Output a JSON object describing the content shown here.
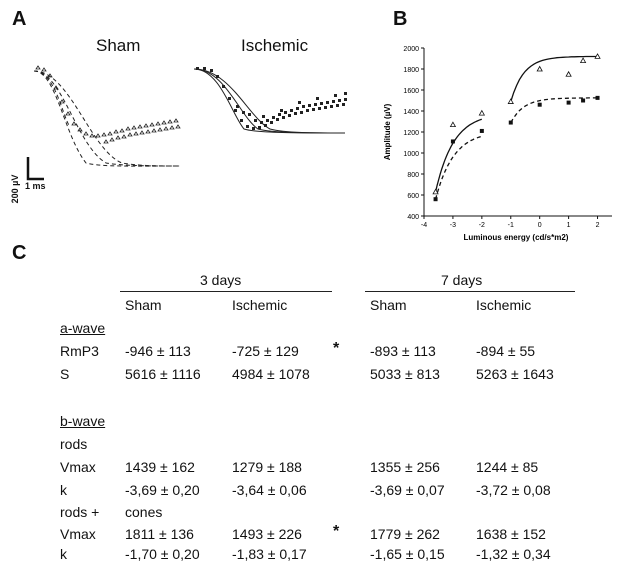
{
  "panel_labels": {
    "a": "A",
    "b": "B",
    "c": "C"
  },
  "panel_a": {
    "title_left": "Sham",
    "title_right": "Ischemic",
    "scale_y": "200 µV",
    "scale_x": "1 ms"
  },
  "chart_data": {
    "type": "scatter",
    "title": "",
    "xlabel": "Luminous energy (cd/s*m2)",
    "ylabel": "Amplitude (µV)",
    "xlim": [
      -4,
      2.5
    ],
    "ylim": [
      400,
      2000
    ],
    "xticks": [
      -4,
      -3,
      -2,
      -1,
      0,
      1,
      2
    ],
    "yticks": [
      400,
      600,
      800,
      1000,
      1200,
      1400,
      1600,
      1800,
      2000
    ],
    "grid": false,
    "series": [
      {
        "marker": "open-triangle",
        "line": "solid",
        "points": [
          [
            -3.6,
            630
          ],
          [
            -3.0,
            1270
          ],
          [
            -2.0,
            1380
          ],
          [
            -1.0,
            1490
          ],
          [
            0.0,
            1800
          ],
          [
            1.0,
            1750
          ],
          [
            1.5,
            1880
          ],
          [
            2.0,
            1920
          ]
        ]
      },
      {
        "marker": "filled-square",
        "line": "dashed",
        "points": [
          [
            -3.6,
            560
          ],
          [
            -3.0,
            1110
          ],
          [
            -2.0,
            1210
          ],
          [
            -1.0,
            1290
          ],
          [
            0.0,
            1460
          ],
          [
            1.0,
            1480
          ],
          [
            1.5,
            1500
          ],
          [
            2.0,
            1525
          ]
        ]
      }
    ]
  },
  "table": {
    "group_3": "3 days",
    "group_7": "7 days",
    "col_sham_3": "Sham",
    "col_isch_3": "Ischemic",
    "col_sham_7": "Sham",
    "col_isch_7": "Ischemic",
    "section_a": "a-wave",
    "section_b": "b-wave",
    "sub_rods": "rods",
    "sub_rodscones_1": "rods   +",
    "sub_rodscones_2": "cones",
    "rows": [
      {
        "label": "RmP3",
        "v": [
          "-946 ± 113",
          "-725 ± 129",
          "-893 ± 113",
          "-894 ± 55"
        ]
      },
      {
        "label": "S",
        "v": [
          "5616 ± 1116",
          "4984 ± 1078",
          "5033 ± 813",
          "5263 ± 1643"
        ]
      },
      {
        "label": "Vmax",
        "v": [
          "1439 ± 162",
          "1279 ± 188",
          "1355 ± 256",
          "1244 ± 85"
        ]
      },
      {
        "label": "k",
        "v": [
          "-3,69 ± 0,20",
          "-3,64 ± 0,06",
          "-3,69 ± 0,07",
          "-3,72 ± 0,08"
        ]
      },
      {
        "label": "Vmax",
        "v": [
          "1811 ± 136",
          "1493 ± 226",
          "1779 ± 262",
          "1638 ± 152"
        ]
      },
      {
        "label": "k",
        "v": [
          "-1,70 ± 0,20",
          "-1,83 ± 0,17",
          "-1,65 ± 0,15",
          "-1,32 ± 0,34"
        ]
      }
    ],
    "star": "*"
  }
}
